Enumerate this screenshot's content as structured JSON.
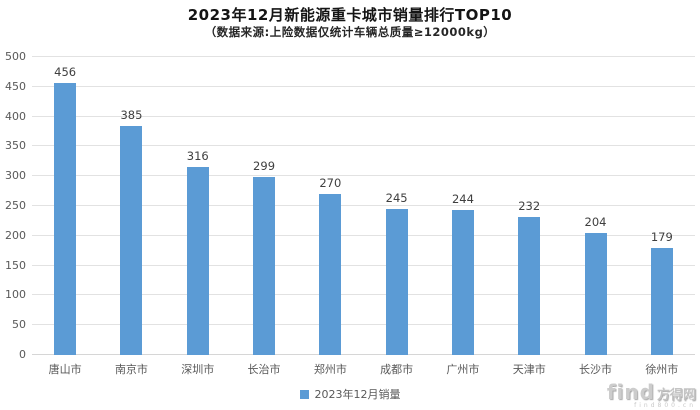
{
  "chart_data": {
    "type": "bar",
    "title": "2023年12月新能源重卡城市销量排行TOP10",
    "subtitle": "（数据来源:上险数据仅统计车辆总质量≥12000kg）",
    "categories": [
      "唐山市",
      "南京市",
      "深圳市",
      "长治市",
      "郑州市",
      "成都市",
      "广州市",
      "天津市",
      "长沙市",
      "徐州市"
    ],
    "values": [
      456,
      385,
      316,
      299,
      270,
      245,
      244,
      232,
      204,
      179
    ],
    "xlabel": "",
    "ylabel": "",
    "ylim": [
      0,
      500
    ],
    "ytick_step": 50,
    "grid": true,
    "legend_position": "bottom",
    "bar_color": "#5B9BD5",
    "gridline_color": "#e2e2e2",
    "value_label_color": "#3f3f3f",
    "axis_text_color": "#595959"
  },
  "legend": {
    "label": "2023年12月销量",
    "marker_color": "#5B9BD5"
  },
  "watermark": {
    "brand_latin": "find",
    "brand_cjk": "方得网",
    "tagline": "find800.cn"
  }
}
